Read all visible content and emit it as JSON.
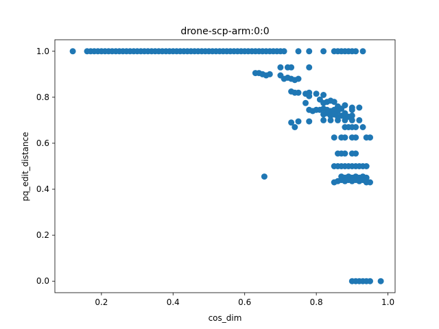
{
  "chart_data": {
    "type": "scatter",
    "title": "drone-scp-arm:0:0",
    "xlabel": "cos_dim",
    "ylabel": "pq_edit_distance",
    "xlim": [
      0.07,
      1.02
    ],
    "ylim": [
      -0.05,
      1.05
    ],
    "xticks": [
      0.2,
      0.4,
      0.6,
      0.8,
      1.0
    ],
    "xtick_labels": [
      "0.2",
      "0.4",
      "0.6",
      "0.8",
      "1.0"
    ],
    "yticks": [
      0.0,
      0.2,
      0.4,
      0.6,
      0.8,
      1.0
    ],
    "ytick_labels": [
      "0.0",
      "0.2",
      "0.4",
      "0.6",
      "0.8",
      "1.0"
    ],
    "grid": false,
    "legend": "none",
    "marker_color": "#1f77b4",
    "series": [
      {
        "points": [
          [
            0.12,
            1.0
          ],
          [
            0.16,
            1.0
          ],
          [
            0.17,
            1.0
          ],
          [
            0.18,
            1.0
          ],
          [
            0.19,
            1.0
          ],
          [
            0.2,
            1.0
          ],
          [
            0.21,
            1.0
          ],
          [
            0.22,
            1.0
          ],
          [
            0.23,
            1.0
          ],
          [
            0.24,
            1.0
          ],
          [
            0.25,
            1.0
          ],
          [
            0.26,
            1.0
          ],
          [
            0.27,
            1.0
          ],
          [
            0.28,
            1.0
          ],
          [
            0.29,
            1.0
          ],
          [
            0.3,
            1.0
          ],
          [
            0.31,
            1.0
          ],
          [
            0.32,
            1.0
          ],
          [
            0.33,
            1.0
          ],
          [
            0.34,
            1.0
          ],
          [
            0.35,
            1.0
          ],
          [
            0.36,
            1.0
          ],
          [
            0.37,
            1.0
          ],
          [
            0.38,
            1.0
          ],
          [
            0.39,
            1.0
          ],
          [
            0.4,
            1.0
          ],
          [
            0.41,
            1.0
          ],
          [
            0.42,
            1.0
          ],
          [
            0.43,
            1.0
          ],
          [
            0.44,
            1.0
          ],
          [
            0.45,
            1.0
          ],
          [
            0.46,
            1.0
          ],
          [
            0.47,
            1.0
          ],
          [
            0.48,
            1.0
          ],
          [
            0.49,
            1.0
          ],
          [
            0.5,
            1.0
          ],
          [
            0.51,
            1.0
          ],
          [
            0.52,
            1.0
          ],
          [
            0.53,
            1.0
          ],
          [
            0.54,
            1.0
          ],
          [
            0.55,
            1.0
          ],
          [
            0.56,
            1.0
          ],
          [
            0.57,
            1.0
          ],
          [
            0.58,
            1.0
          ],
          [
            0.59,
            1.0
          ],
          [
            0.6,
            1.0
          ],
          [
            0.61,
            1.0
          ],
          [
            0.62,
            1.0
          ],
          [
            0.63,
            1.0
          ],
          [
            0.64,
            1.0
          ],
          [
            0.65,
            1.0
          ],
          [
            0.66,
            1.0
          ],
          [
            0.67,
            1.0
          ],
          [
            0.68,
            1.0
          ],
          [
            0.69,
            1.0
          ],
          [
            0.7,
            1.0
          ],
          [
            0.71,
            1.0
          ],
          [
            0.75,
            1.0
          ],
          [
            0.78,
            1.0
          ],
          [
            0.82,
            1.0
          ],
          [
            0.85,
            1.0
          ],
          [
            0.86,
            1.0
          ],
          [
            0.87,
            1.0
          ],
          [
            0.88,
            1.0
          ],
          [
            0.89,
            1.0
          ],
          [
            0.9,
            1.0
          ],
          [
            0.91,
            1.0
          ],
          [
            0.93,
            1.0
          ],
          [
            0.63,
            0.905
          ],
          [
            0.64,
            0.905
          ],
          [
            0.65,
            0.9
          ],
          [
            0.66,
            0.895
          ],
          [
            0.67,
            0.9
          ],
          [
            0.7,
            0.93
          ],
          [
            0.72,
            0.93
          ],
          [
            0.73,
            0.93
          ],
          [
            0.78,
            0.93
          ],
          [
            0.7,
            0.895
          ],
          [
            0.71,
            0.88
          ],
          [
            0.72,
            0.885
          ],
          [
            0.73,
            0.88
          ],
          [
            0.74,
            0.875
          ],
          [
            0.75,
            0.88
          ],
          [
            0.73,
            0.825
          ],
          [
            0.74,
            0.82
          ],
          [
            0.75,
            0.82
          ],
          [
            0.77,
            0.815
          ],
          [
            0.78,
            0.82
          ],
          [
            0.78,
            0.805
          ],
          [
            0.8,
            0.815
          ],
          [
            0.82,
            0.81
          ],
          [
            0.77,
            0.775
          ],
          [
            0.81,
            0.79
          ],
          [
            0.82,
            0.775
          ],
          [
            0.83,
            0.78
          ],
          [
            0.84,
            0.785
          ],
          [
            0.85,
            0.78
          ],
          [
            0.86,
            0.76
          ],
          [
            0.88,
            0.765
          ],
          [
            0.9,
            0.755
          ],
          [
            0.92,
            0.755
          ],
          [
            0.78,
            0.745
          ],
          [
            0.79,
            0.74
          ],
          [
            0.8,
            0.745
          ],
          [
            0.81,
            0.745
          ],
          [
            0.82,
            0.75
          ],
          [
            0.83,
            0.745
          ],
          [
            0.84,
            0.74
          ],
          [
            0.85,
            0.745
          ],
          [
            0.86,
            0.74
          ],
          [
            0.87,
            0.75
          ],
          [
            0.88,
            0.73
          ],
          [
            0.9,
            0.745
          ],
          [
            0.82,
            0.725
          ],
          [
            0.83,
            0.73
          ],
          [
            0.84,
            0.72
          ],
          [
            0.85,
            0.725
          ],
          [
            0.86,
            0.715
          ],
          [
            0.87,
            0.72
          ],
          [
            0.88,
            0.72
          ],
          [
            0.89,
            0.715
          ],
          [
            0.9,
            0.72
          ],
          [
            0.73,
            0.69
          ],
          [
            0.74,
            0.67
          ],
          [
            0.75,
            0.695
          ],
          [
            0.78,
            0.695
          ],
          [
            0.82,
            0.7
          ],
          [
            0.84,
            0.7
          ],
          [
            0.86,
            0.7
          ],
          [
            0.88,
            0.7
          ],
          [
            0.9,
            0.7
          ],
          [
            0.92,
            0.7
          ],
          [
            0.88,
            0.67
          ],
          [
            0.89,
            0.67
          ],
          [
            0.9,
            0.67
          ],
          [
            0.91,
            0.67
          ],
          [
            0.93,
            0.67
          ],
          [
            0.85,
            0.625
          ],
          [
            0.87,
            0.625
          ],
          [
            0.88,
            0.625
          ],
          [
            0.9,
            0.625
          ],
          [
            0.91,
            0.625
          ],
          [
            0.94,
            0.625
          ],
          [
            0.95,
            0.625
          ],
          [
            0.86,
            0.555
          ],
          [
            0.87,
            0.555
          ],
          [
            0.88,
            0.555
          ],
          [
            0.9,
            0.555
          ],
          [
            0.91,
            0.555
          ],
          [
            0.85,
            0.5
          ],
          [
            0.86,
            0.5
          ],
          [
            0.87,
            0.5
          ],
          [
            0.88,
            0.5
          ],
          [
            0.89,
            0.5
          ],
          [
            0.9,
            0.5
          ],
          [
            0.91,
            0.5
          ],
          [
            0.92,
            0.5
          ],
          [
            0.93,
            0.5
          ],
          [
            0.94,
            0.5
          ],
          [
            0.87,
            0.455
          ],
          [
            0.88,
            0.45
          ],
          [
            0.89,
            0.455
          ],
          [
            0.9,
            0.45
          ],
          [
            0.91,
            0.455
          ],
          [
            0.92,
            0.45
          ],
          [
            0.93,
            0.455
          ],
          [
            0.94,
            0.45
          ],
          [
            0.86,
            0.435
          ],
          [
            0.87,
            0.44
          ],
          [
            0.88,
            0.435
          ],
          [
            0.89,
            0.44
          ],
          [
            0.9,
            0.435
          ],
          [
            0.91,
            0.44
          ],
          [
            0.92,
            0.435
          ],
          [
            0.93,
            0.44
          ],
          [
            0.94,
            0.43
          ],
          [
            0.95,
            0.43
          ],
          [
            0.85,
            0.43
          ],
          [
            0.655,
            0.455
          ],
          [
            0.9,
            0.0
          ],
          [
            0.91,
            0.0
          ],
          [
            0.92,
            0.0
          ],
          [
            0.93,
            0.0
          ],
          [
            0.94,
            0.0
          ],
          [
            0.95,
            0.0
          ],
          [
            0.98,
            0.0
          ]
        ]
      }
    ]
  }
}
